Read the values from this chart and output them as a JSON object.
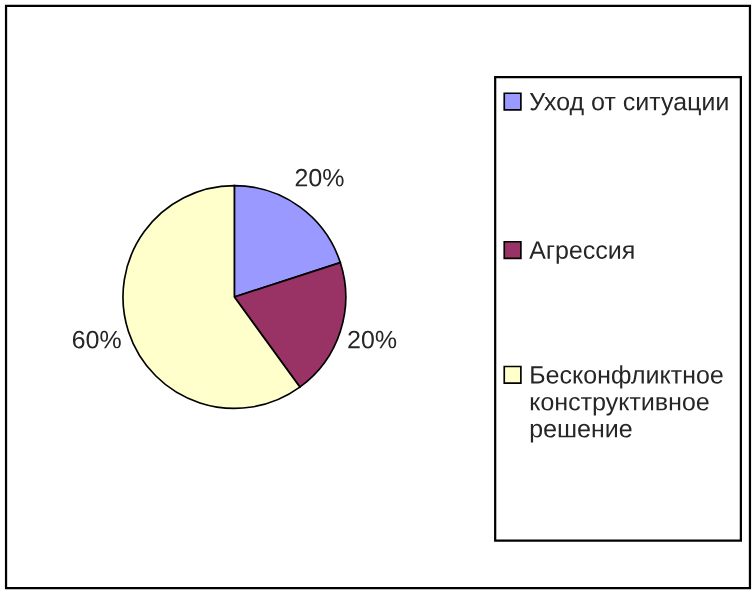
{
  "chart_data": {
    "type": "pie",
    "categories": [
      "Уход от ситуации",
      "Агрессия",
      "Бесконфликтное конструктивное решение"
    ],
    "values": [
      20,
      20,
      60
    ],
    "value_labels": [
      "20%",
      "20%",
      "60%"
    ],
    "colors": [
      "#9999ff",
      "#993366",
      "#ffffcc"
    ],
    "legend": "right"
  }
}
